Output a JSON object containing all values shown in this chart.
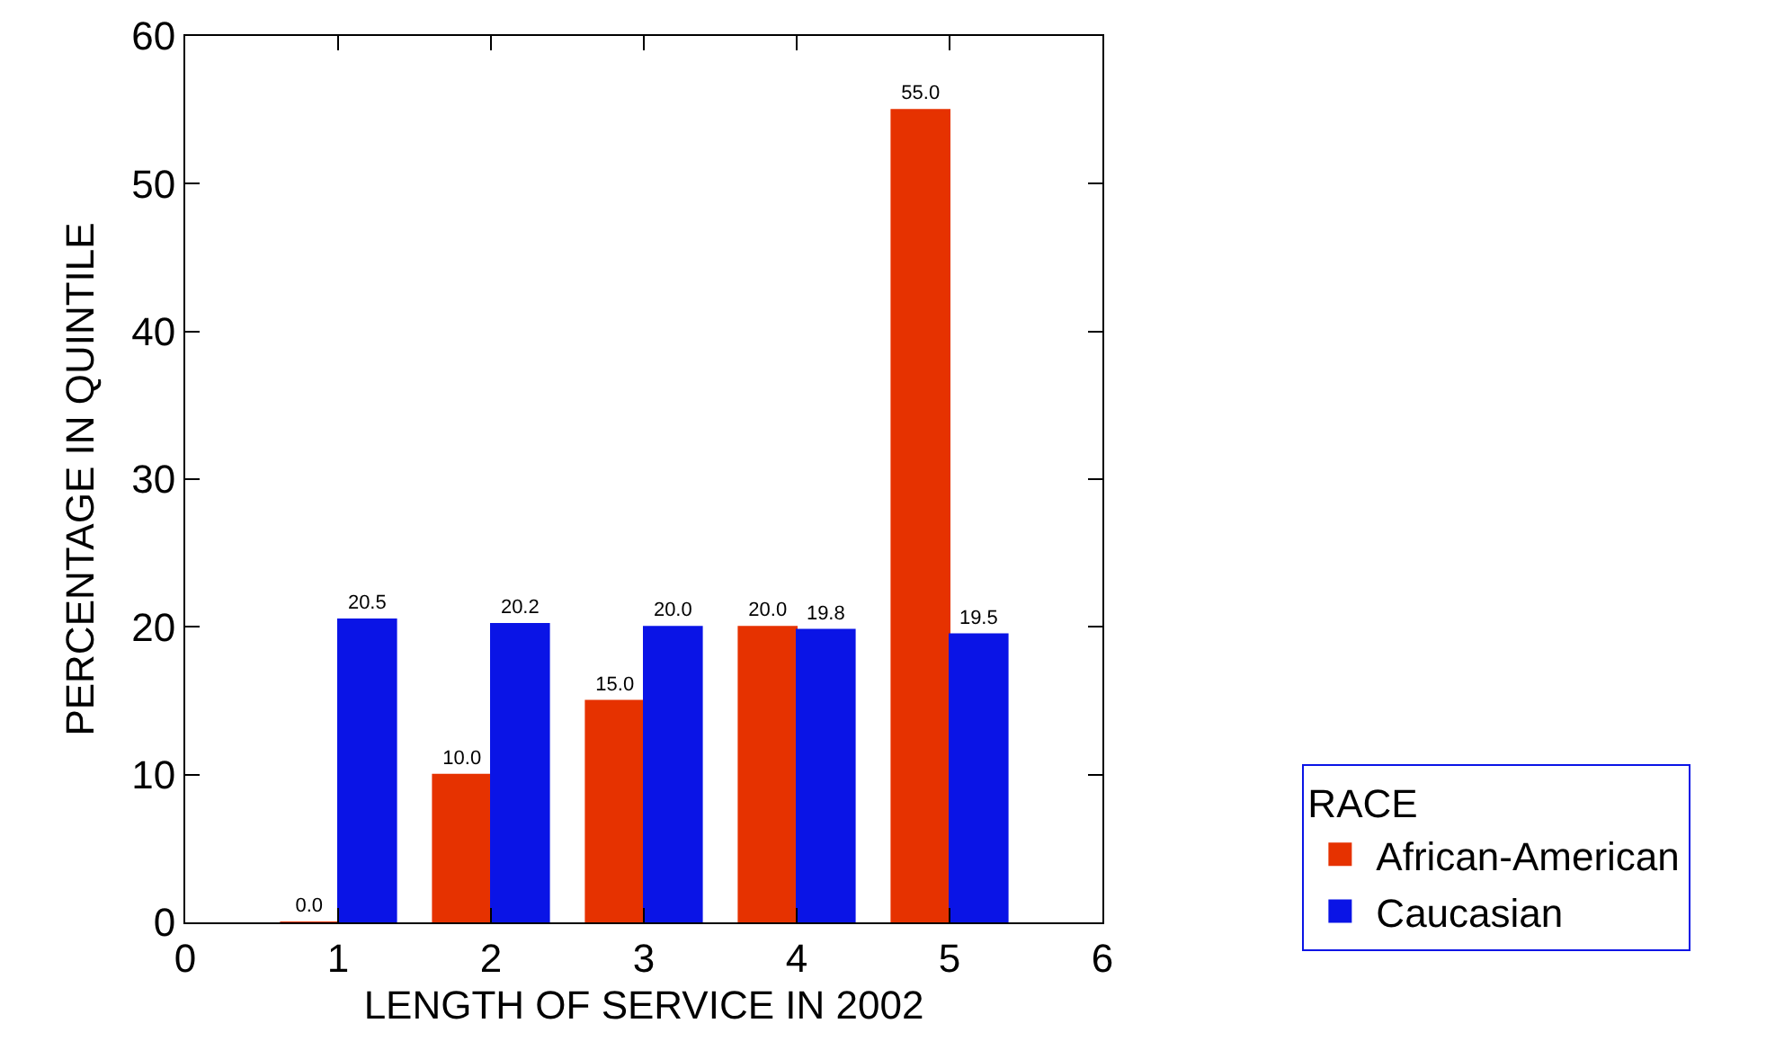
{
  "chart_data": {
    "type": "bar",
    "xlabel": "LENGTH OF SERVICE IN 2002",
    "ylabel": "PERCENTAGE IN QUINTILE",
    "legend_title": "RACE",
    "x": [
      1,
      2,
      3,
      4,
      5
    ],
    "series": [
      {
        "name": "African-American",
        "color": "#e63200",
        "values": [
          0,
          10,
          15,
          20,
          55
        ],
        "value_labels": [
          "0.0",
          "10.0",
          "15.0",
          "20.0",
          "55.0"
        ]
      },
      {
        "name": "Caucasian",
        "color": "#0a14e6",
        "values": [
          20.5,
          20.2,
          20,
          19.8,
          19.5
        ],
        "value_labels": [
          "20.5",
          "20.2",
          "20.0",
          "19.8",
          "19.5"
        ]
      }
    ],
    "xlim": [
      0,
      6
    ],
    "xticks": [
      0,
      1,
      2,
      3,
      4,
      5,
      6
    ],
    "ylim": [
      0,
      60
    ],
    "yticks": [
      0,
      10,
      20,
      30,
      40,
      50,
      60
    ],
    "grid": false,
    "legend": "bottom right"
  }
}
